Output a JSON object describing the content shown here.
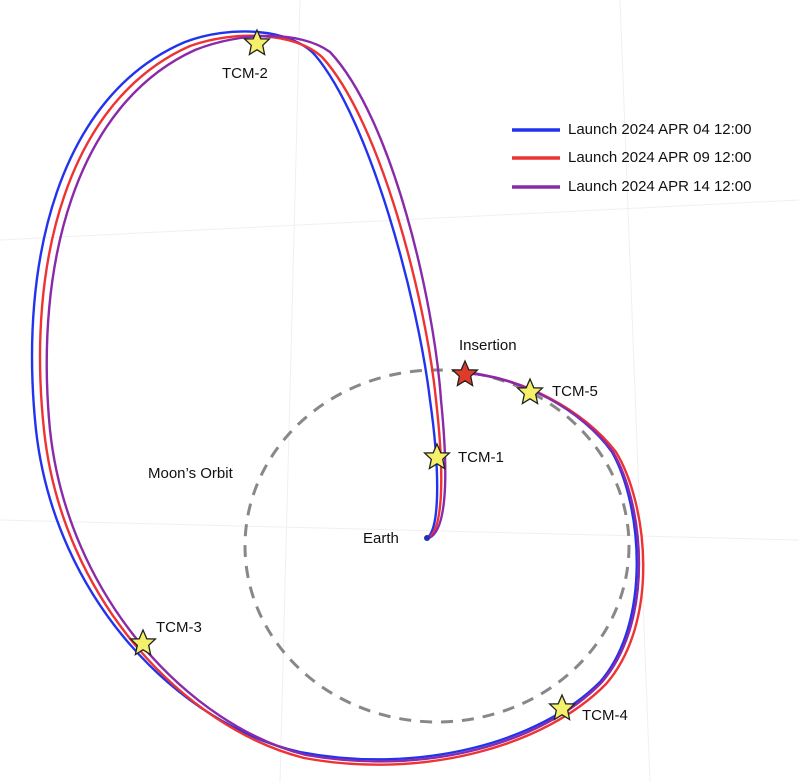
{
  "legend": [
    "Launch 2024 APR 04 12:00",
    "Launch 2024 APR 09 12:00",
    "Launch 2024 APR 14 12:00"
  ],
  "markers": {
    "tcm1": "TCM-1",
    "tcm2": "TCM-2",
    "tcm3": "TCM-3",
    "tcm4": "TCM-4",
    "tcm5": "TCM-5",
    "insertion": "Insertion"
  },
  "labels": {
    "moon_orbit": "Moon’s Orbit",
    "earth": "Earth"
  }
}
